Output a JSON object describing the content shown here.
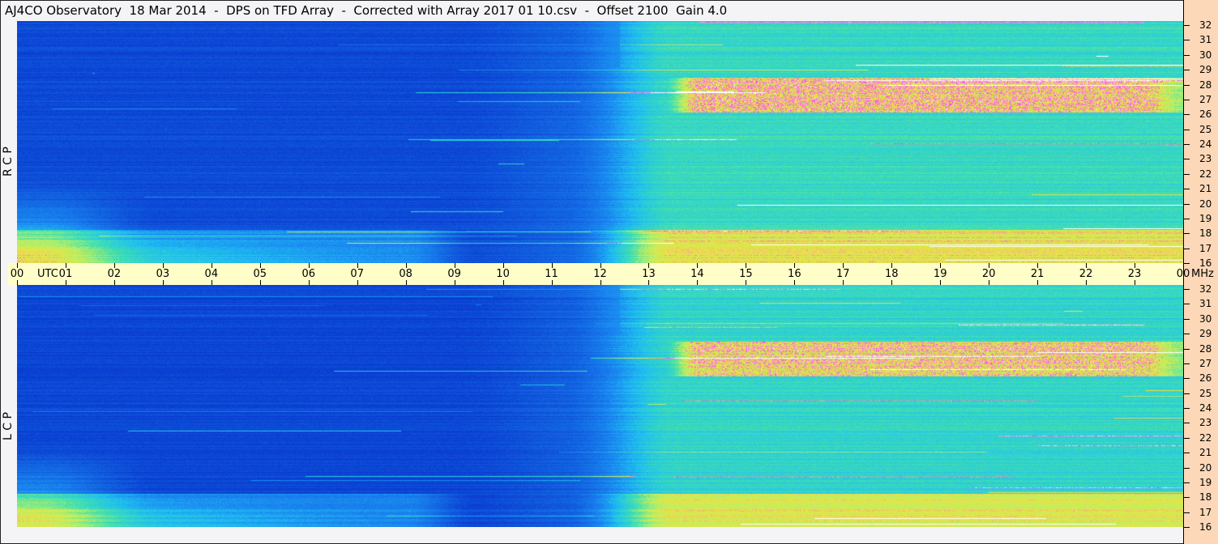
{
  "title": "AJ4CO Observatory  18 Mar 2014  -  DPS on TFD Array  -  Corrected with Array 2017 01 10.csv  -  Offset 2100  Gain 4.0",
  "chart_data": {
    "type": "heatmap",
    "title": "AJ4CO Observatory  18 Mar 2014  -  DPS on TFD Array  -  Corrected with Array 2017 01 10.csv  -  Offset 2100  Gain 4.0",
    "xlabel": "UTC",
    "ylabel": "MHz",
    "x_ticks": [
      "00",
      "01",
      "02",
      "03",
      "04",
      "05",
      "06",
      "07",
      "08",
      "09",
      "10",
      "11",
      "12",
      "13",
      "14",
      "15",
      "16",
      "17",
      "18",
      "19",
      "20",
      "21",
      "22",
      "23",
      "00"
    ],
    "y_ticks": [
      "16",
      "17",
      "18",
      "19",
      "20",
      "21",
      "22",
      "23",
      "24",
      "25",
      "26",
      "27",
      "28",
      "29",
      "30",
      "31",
      "32"
    ],
    "xlim": [
      0,
      24
    ],
    "ylim": [
      16,
      32
    ],
    "panels": [
      {
        "label": "R C P"
      },
      {
        "label": "L C P"
      }
    ],
    "colormap": [
      "#0a3cd0",
      "#1a86f0",
      "#20c0f0",
      "#40e0b0",
      "#c0f060",
      "#f0e040",
      "#ff40ff",
      "#ffffff"
    ],
    "grid": false
  }
}
